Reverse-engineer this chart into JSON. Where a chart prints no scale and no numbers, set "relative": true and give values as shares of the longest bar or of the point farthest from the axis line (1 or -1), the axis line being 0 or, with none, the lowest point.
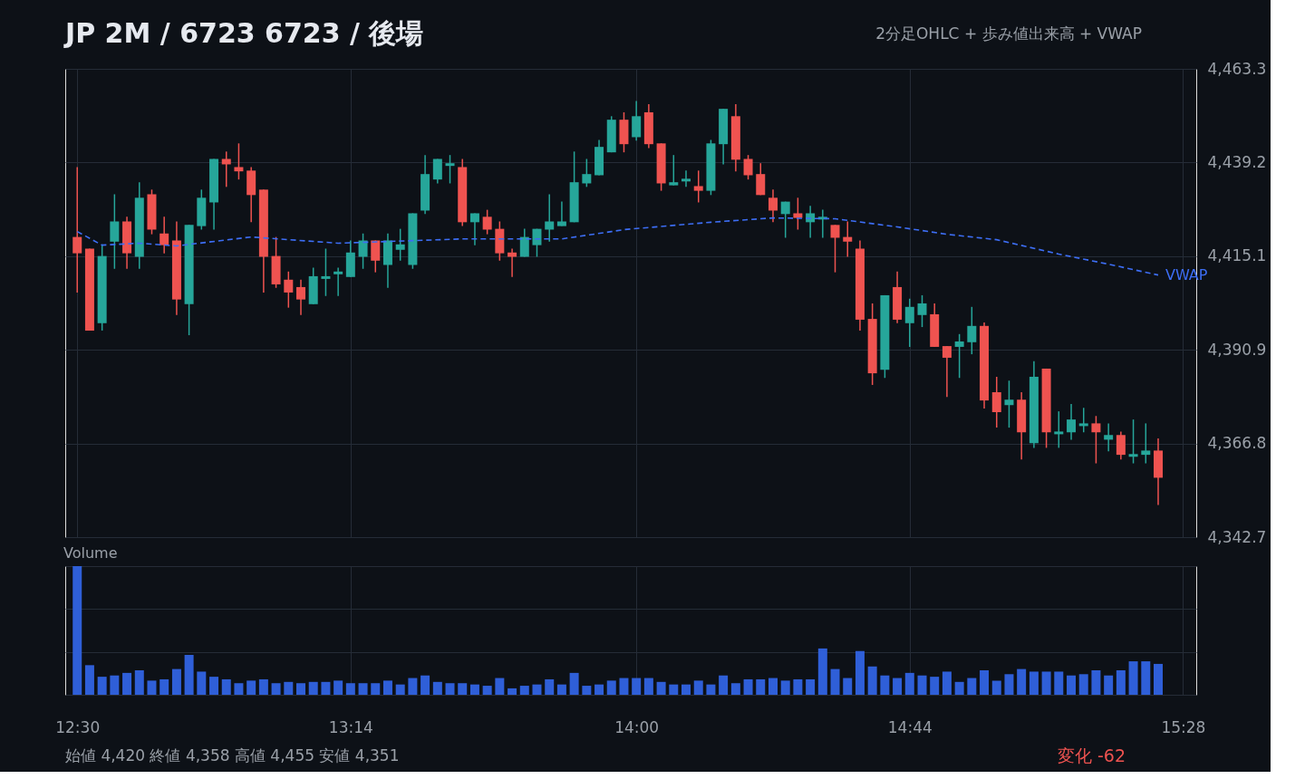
{
  "chart_data": [
    {
      "type": "candlestick",
      "title": "JP 2M / 6723 6723 / 後場",
      "subtitle": "2分足OHLC + 歩み値出来高 + VWAP",
      "xlim": [
        12.48,
        15.49
      ],
      "xticks": [
        {
          "value": 12.5,
          "label": null
        },
        {
          "value": 13.2333,
          "label": null
        },
        {
          "value": 14,
          "label": null
        },
        {
          "value": 14.7333,
          "label": null
        },
        {
          "value": 15.4667,
          "label": null
        }
      ],
      "ylim": [
        4342.7,
        4463.3
      ],
      "yticks": [
        {
          "value": 4342.7,
          "label": "4,342.7"
        },
        {
          "value": 4366.8,
          "label": "4,366.8"
        },
        {
          "value": 4390.9,
          "label": "4,390.9"
        },
        {
          "value": 4415.1,
          "label": "4,415.1"
        },
        {
          "value": 4439.2,
          "label": "4,439.2"
        },
        {
          "value": 4463.3,
          "label": "4,463.3"
        }
      ],
      "grid": true,
      "legend": false,
      "tick_labels": "y",
      "series": [
        {
          "type": "candlestick",
          "x": [
            12.5,
            12.5333,
            12.5667,
            12.6,
            12.6333,
            12.6667,
            12.7,
            12.7333,
            12.7667,
            12.8,
            12.8333,
            12.8667,
            12.9,
            12.9333,
            12.9667,
            13,
            13.0333,
            13.0667,
            13.1,
            13.1333,
            13.1667,
            13.2,
            13.2333,
            13.2667,
            13.3,
            13.3333,
            13.3667,
            13.4,
            13.4333,
            13.4667,
            13.5,
            13.5333,
            13.5667,
            13.6,
            13.6333,
            13.6667,
            13.7,
            13.7333,
            13.7667,
            13.8,
            13.8333,
            13.8667,
            13.9,
            13.9333,
            13.9667,
            14,
            14.0333,
            14.0667,
            14.1,
            14.1333,
            14.1667,
            14.2,
            14.2333,
            14.2667,
            14.3,
            14.3333,
            14.3667,
            14.4,
            14.4333,
            14.4667,
            14.5,
            14.5333,
            14.5667,
            14.6,
            14.6333,
            14.6667,
            14.7,
            14.7333,
            14.7667,
            14.8,
            14.8333,
            14.8667,
            14.9,
            14.9333,
            14.9667,
            15,
            15.0333,
            15.0667,
            15.1,
            15.1333,
            15.1667,
            15.2,
            15.2333,
            15.2667,
            15.3,
            15.3333,
            15.3667,
            15.4
          ],
          "ohlc": [
            [
              4420.0,
              4438.0,
              4405.7,
              4415.8
            ],
            [
              4417.0,
              4417.0,
              4395.9,
              4395.9
            ],
            [
              4397.8,
              4418.1,
              4395.9,
              4415.1
            ],
            [
              4418.8,
              4431.0,
              4411.8,
              4424.0
            ],
            [
              4424.0,
              4425.2,
              4411.8,
              4415.8
            ],
            [
              4414.9,
              4434.1,
              4411.8,
              4430.1
            ],
            [
              4431.0,
              4432.2,
              4420.7,
              4421.9
            ],
            [
              4420.9,
              4425.2,
              4415.8,
              4417.9
            ],
            [
              4419.1,
              4424.0,
              4399.9,
              4403.9
            ],
            [
              4402.7,
              4423.1,
              4394.7,
              4423.1
            ],
            [
              4422.8,
              4432.2,
              4421.9,
              4430.1
            ],
            [
              4428.9,
              4440.1,
              4421.9,
              4440.1
            ],
            [
              4440.1,
              4442.0,
              4432.9,
              4438.7
            ],
            [
              4438.0,
              4444.1,
              4434.8,
              4436.9
            ],
            [
              4437.1,
              4438.0,
              4423.8,
              4430.8
            ],
            [
              4432.2,
              4432.2,
              4405.7,
              4414.9
            ],
            [
              4415.1,
              4420.0,
              4406.9,
              4407.8
            ],
            [
              4409.0,
              4411.1,
              4401.8,
              4405.7
            ],
            [
              4407.1,
              4409.0,
              4399.9,
              4403.9
            ],
            [
              4402.7,
              4412.1,
              4402.7,
              4409.9
            ],
            [
              4409.2,
              4417.0,
              4404.8,
              4409.9
            ],
            [
              4410.4,
              4412.1,
              4404.8,
              4411.1
            ],
            [
              4409.7,
              4419.1,
              4409.7,
              4416.0
            ],
            [
              4414.9,
              4420.9,
              4411.8,
              4419.1
            ],
            [
              4419.1,
              4419.1,
              4410.9,
              4413.9
            ],
            [
              4412.8,
              4420.9,
              4406.9,
              4419.1
            ],
            [
              4416.7,
              4422.1,
              4413.9,
              4418.1
            ],
            [
              4412.8,
              4426.1,
              4411.8,
              4426.1
            ],
            [
              4426.8,
              4441.1,
              4425.9,
              4436.2
            ],
            [
              4434.8,
              4440.1,
              4433.8,
              4440.1
            ],
            [
              4438.3,
              4441.1,
              4433.8,
              4439.0
            ],
            [
              4438.0,
              4440.1,
              4422.8,
              4423.8
            ],
            [
              4423.8,
              4426.1,
              4417.9,
              4426.1
            ],
            [
              4425.2,
              4427.0,
              4420.7,
              4421.9
            ],
            [
              4422.1,
              4424.0,
              4413.9,
              4415.8
            ],
            [
              4416.0,
              4417.0,
              4409.7,
              4414.9
            ],
            [
              4414.9,
              4422.1,
              4414.9,
              4420.0
            ],
            [
              4417.9,
              4422.1,
              4414.9,
              4422.1
            ],
            [
              4421.9,
              4431.0,
              4418.8,
              4424.0
            ],
            [
              4422.8,
              4429.1,
              4422.8,
              4424.0
            ],
            [
              4423.8,
              4442.0,
              4423.8,
              4434.1
            ],
            [
              4433.8,
              4440.1,
              4432.9,
              4436.2
            ],
            [
              4435.9,
              4445.0,
              4435.9,
              4443.2
            ],
            [
              4441.8,
              4451.1,
              4441.8,
              4450.2
            ],
            [
              4450.2,
              4452.1,
              4441.8,
              4443.9
            ],
            [
              4445.7,
              4455.0,
              4444.8,
              4451.1
            ],
            [
              4452.1,
              4454.2,
              4442.9,
              4443.9
            ],
            [
              4444.1,
              4444.1,
              4431.9,
              4433.8
            ],
            [
              4433.3,
              4441.1,
              4433.3,
              4434.1
            ],
            [
              4434.3,
              4437.1,
              4432.9,
              4435.0
            ],
            [
              4433.1,
              4437.1,
              4428.9,
              4431.9
            ],
            [
              4431.9,
              4445.0,
              4430.8,
              4444.1
            ],
            [
              4443.9,
              4453.0,
              4438.7,
              4453.0
            ],
            [
              4451.1,
              4454.2,
              4436.9,
              4439.9
            ],
            [
              4440.1,
              4441.1,
              4434.8,
              4435.9
            ],
            [
              4436.2,
              4439.0,
              4430.8,
              4430.8
            ],
            [
              4430.1,
              4432.2,
              4423.8,
              4426.8
            ],
            [
              4425.9,
              4429.1,
              4419.8,
              4429.1
            ],
            [
              4426.1,
              4430.1,
              4421.9,
              4424.9
            ],
            [
              4423.8,
              4428.0,
              4419.8,
              4426.1
            ],
            [
              4424.5,
              4427.0,
              4419.8,
              4425.2
            ],
            [
              4423.1,
              4423.1,
              4410.9,
              4419.8
            ],
            [
              4420.0,
              4424.0,
              4414.9,
              4418.8
            ],
            [
              4417.0,
              4419.1,
              4395.9,
              4398.7
            ],
            [
              4398.9,
              4402.9,
              4381.9,
              4384.9
            ],
            [
              4385.8,
              4405.0,
              4383.7,
              4405.0
            ],
            [
              4407.1,
              4411.1,
              4397.8,
              4398.7
            ],
            [
              4397.8,
              4404.1,
              4391.7,
              4402.0
            ],
            [
              4399.9,
              4405.0,
              4396.8,
              4402.9
            ],
            [
              4400.1,
              4402.9,
              4391.7,
              4391.7
            ],
            [
              4391.9,
              4391.9,
              4378.8,
              4388.9
            ],
            [
              4391.7,
              4395.0,
              4383.7,
              4393.1
            ],
            [
              4392.9,
              4402.0,
              4389.8,
              4397.1
            ],
            [
              4397.1,
              4398.0,
              4375.8,
              4377.9
            ],
            [
              4380.0,
              4384.0,
              4370.9,
              4374.9
            ],
            [
              4376.7,
              4383.0,
              4370.9,
              4378.1
            ],
            [
              4378.1,
              4380.0,
              4362.7,
              4369.7
            ],
            [
              4366.9,
              4388.0,
              4365.7,
              4384.0
            ],
            [
              4386.1,
              4386.1,
              4365.7,
              4369.7
            ],
            [
              4369.2,
              4375.1,
              4365.7,
              4369.9
            ],
            [
              4369.7,
              4377.0,
              4367.8,
              4373.0
            ],
            [
              4371.3,
              4376.0,
              4369.7,
              4372.0
            ],
            [
              4372.0,
              4373.9,
              4361.7,
              4369.7
            ],
            [
              4367.8,
              4372.0,
              4364.8,
              4369.0
            ],
            [
              4369.0,
              4369.9,
              4362.7,
              4363.9
            ],
            [
              4363.4,
              4373.0,
              4361.7,
              4364.1
            ],
            [
              4363.9,
              4372.0,
              4361.7,
              4365.0
            ],
            [
              4365.0,
              4368.1,
              4351.0,
              4358.0
            ]
          ],
          "colors": [
            "#ef5350",
            "#ef5350",
            "#26a69a",
            "#26a69a",
            "#ef5350",
            "#26a69a",
            "#ef5350",
            "#ef5350",
            "#ef5350",
            "#26a69a",
            "#26a69a",
            "#26a69a",
            "#ef5350",
            "#ef5350",
            "#ef5350",
            "#ef5350",
            "#ef5350",
            "#ef5350",
            "#ef5350",
            "#26a69a",
            "#26a69a",
            "#26a69a",
            "#26a69a",
            "#26a69a",
            "#ef5350",
            "#26a69a",
            "#26a69a",
            "#26a69a",
            "#26a69a",
            "#26a69a",
            "#26a69a",
            "#ef5350",
            "#26a69a",
            "#ef5350",
            "#ef5350",
            "#ef5350",
            "#26a69a",
            "#26a69a",
            "#26a69a",
            "#26a69a",
            "#26a69a",
            "#26a69a",
            "#26a69a",
            "#26a69a",
            "#ef5350",
            "#26a69a",
            "#ef5350",
            "#ef5350",
            "#26a69a",
            "#26a69a",
            "#ef5350",
            "#26a69a",
            "#26a69a",
            "#ef5350",
            "#ef5350",
            "#ef5350",
            "#ef5350",
            "#26a69a",
            "#ef5350",
            "#26a69a",
            "#26a69a",
            "#ef5350",
            "#ef5350",
            "#ef5350",
            "#ef5350",
            "#26a69a",
            "#ef5350",
            "#26a69a",
            "#26a69a",
            "#ef5350",
            "#ef5350",
            "#26a69a",
            "#26a69a",
            "#ef5350",
            "#ef5350",
            "#26a69a",
            "#ef5350",
            "#26a69a",
            "#ef5350",
            "#26a69a",
            "#26a69a",
            "#26a69a",
            "#ef5350",
            "#26a69a",
            "#ef5350",
            "#26a69a",
            "#26a69a",
            "#ef5350"
          ]
        },
        {
          "type": "line",
          "name": "VWAP",
          "color": "#3d6ef5",
          "line_style": "dashed",
          "x": [
            12.5,
            12.5667,
            12.6667,
            12.7667,
            12.9667,
            13.2,
            13.5333,
            13.8,
            13.9333,
            13.9667,
            14.2,
            14.3667,
            14.5333,
            14.7,
            14.8333,
            14.9667,
            15.1333,
            15.2667,
            15.4
          ],
          "values": [
            4421.4,
            4417.9,
            4418.4,
            4417.7,
            4420.0,
            4418.4,
            4419.5,
            4419.5,
            4421.4,
            4421.9,
            4423.8,
            4424.9,
            4424.7,
            4422.6,
            4420.7,
            4419.3,
            4415.6,
            4413.0,
            4410.2
          ]
        }
      ]
    },
    {
      "type": "bar",
      "title": "Volume",
      "relative": true,
      "color": "#2f5fd8",
      "grid": true,
      "tick_labels": "x",
      "xlim": [
        12.48,
        15.49
      ],
      "xticks": [
        {
          "value": 12.5,
          "label": "12:30"
        },
        {
          "value": 13.2333,
          "label": "13:14"
        },
        {
          "value": 14,
          "label": "14:00"
        },
        {
          "value": 14.7333,
          "label": "14:44"
        },
        {
          "value": 15.4667,
          "label": "15:28"
        }
      ],
      "x": [
        12.5,
        12.5333,
        12.5667,
        12.6,
        12.6333,
        12.6667,
        12.7,
        12.7333,
        12.7667,
        12.8,
        12.8333,
        12.8667,
        12.9,
        12.9333,
        12.9667,
        13,
        13.0333,
        13.0667,
        13.1,
        13.1333,
        13.1667,
        13.2,
        13.2333,
        13.2667,
        13.3,
        13.3333,
        13.3667,
        13.4,
        13.4333,
        13.4667,
        13.5,
        13.5333,
        13.5667,
        13.6,
        13.6333,
        13.6667,
        13.7,
        13.7333,
        13.7667,
        13.8,
        13.8333,
        13.8667,
        13.9,
        13.9333,
        13.9667,
        14,
        14.0333,
        14.0667,
        14.1,
        14.1333,
        14.1667,
        14.2,
        14.2333,
        14.2667,
        14.3,
        14.3333,
        14.3667,
        14.4,
        14.4333,
        14.4667,
        14.5,
        14.5333,
        14.5667,
        14.6,
        14.6333,
        14.6667,
        14.7,
        14.7333,
        14.7667,
        14.8,
        14.8333,
        14.8667,
        14.9,
        14.9333,
        14.9667,
        15,
        15.0333,
        15.0667,
        15.1,
        15.1333,
        15.1667,
        15.2,
        15.2333,
        15.2667,
        15.3,
        15.3333,
        15.3667,
        15.4
      ],
      "values": [
        1.0,
        0.23,
        0.14,
        0.15,
        0.17,
        0.19,
        0.11,
        0.12,
        0.2,
        0.31,
        0.18,
        0.14,
        0.12,
        0.09,
        0.11,
        0.12,
        0.09,
        0.1,
        0.09,
        0.1,
        0.1,
        0.11,
        0.09,
        0.09,
        0.09,
        0.11,
        0.08,
        0.13,
        0.15,
        0.1,
        0.09,
        0.09,
        0.08,
        0.07,
        0.13,
        0.05,
        0.07,
        0.08,
        0.12,
        0.08,
        0.17,
        0.07,
        0.08,
        0.11,
        0.13,
        0.13,
        0.13,
        0.1,
        0.08,
        0.08,
        0.11,
        0.08,
        0.15,
        0.09,
        0.12,
        0.12,
        0.13,
        0.11,
        0.12,
        0.12,
        0.36,
        0.2,
        0.13,
        0.34,
        0.22,
        0.15,
        0.13,
        0.17,
        0.15,
        0.14,
        0.18,
        0.1,
        0.13,
        0.19,
        0.11,
        0.16,
        0.2,
        0.18,
        0.18,
        0.18,
        0.15,
        0.16,
        0.19,
        0.15,
        0.19,
        0.26,
        0.26,
        0.24
      ],
      "annotations": [
        "始値 4,420  終値 4,358  高値 4,455  安値 4,351",
        "変化 -62"
      ]
    }
  ]
}
